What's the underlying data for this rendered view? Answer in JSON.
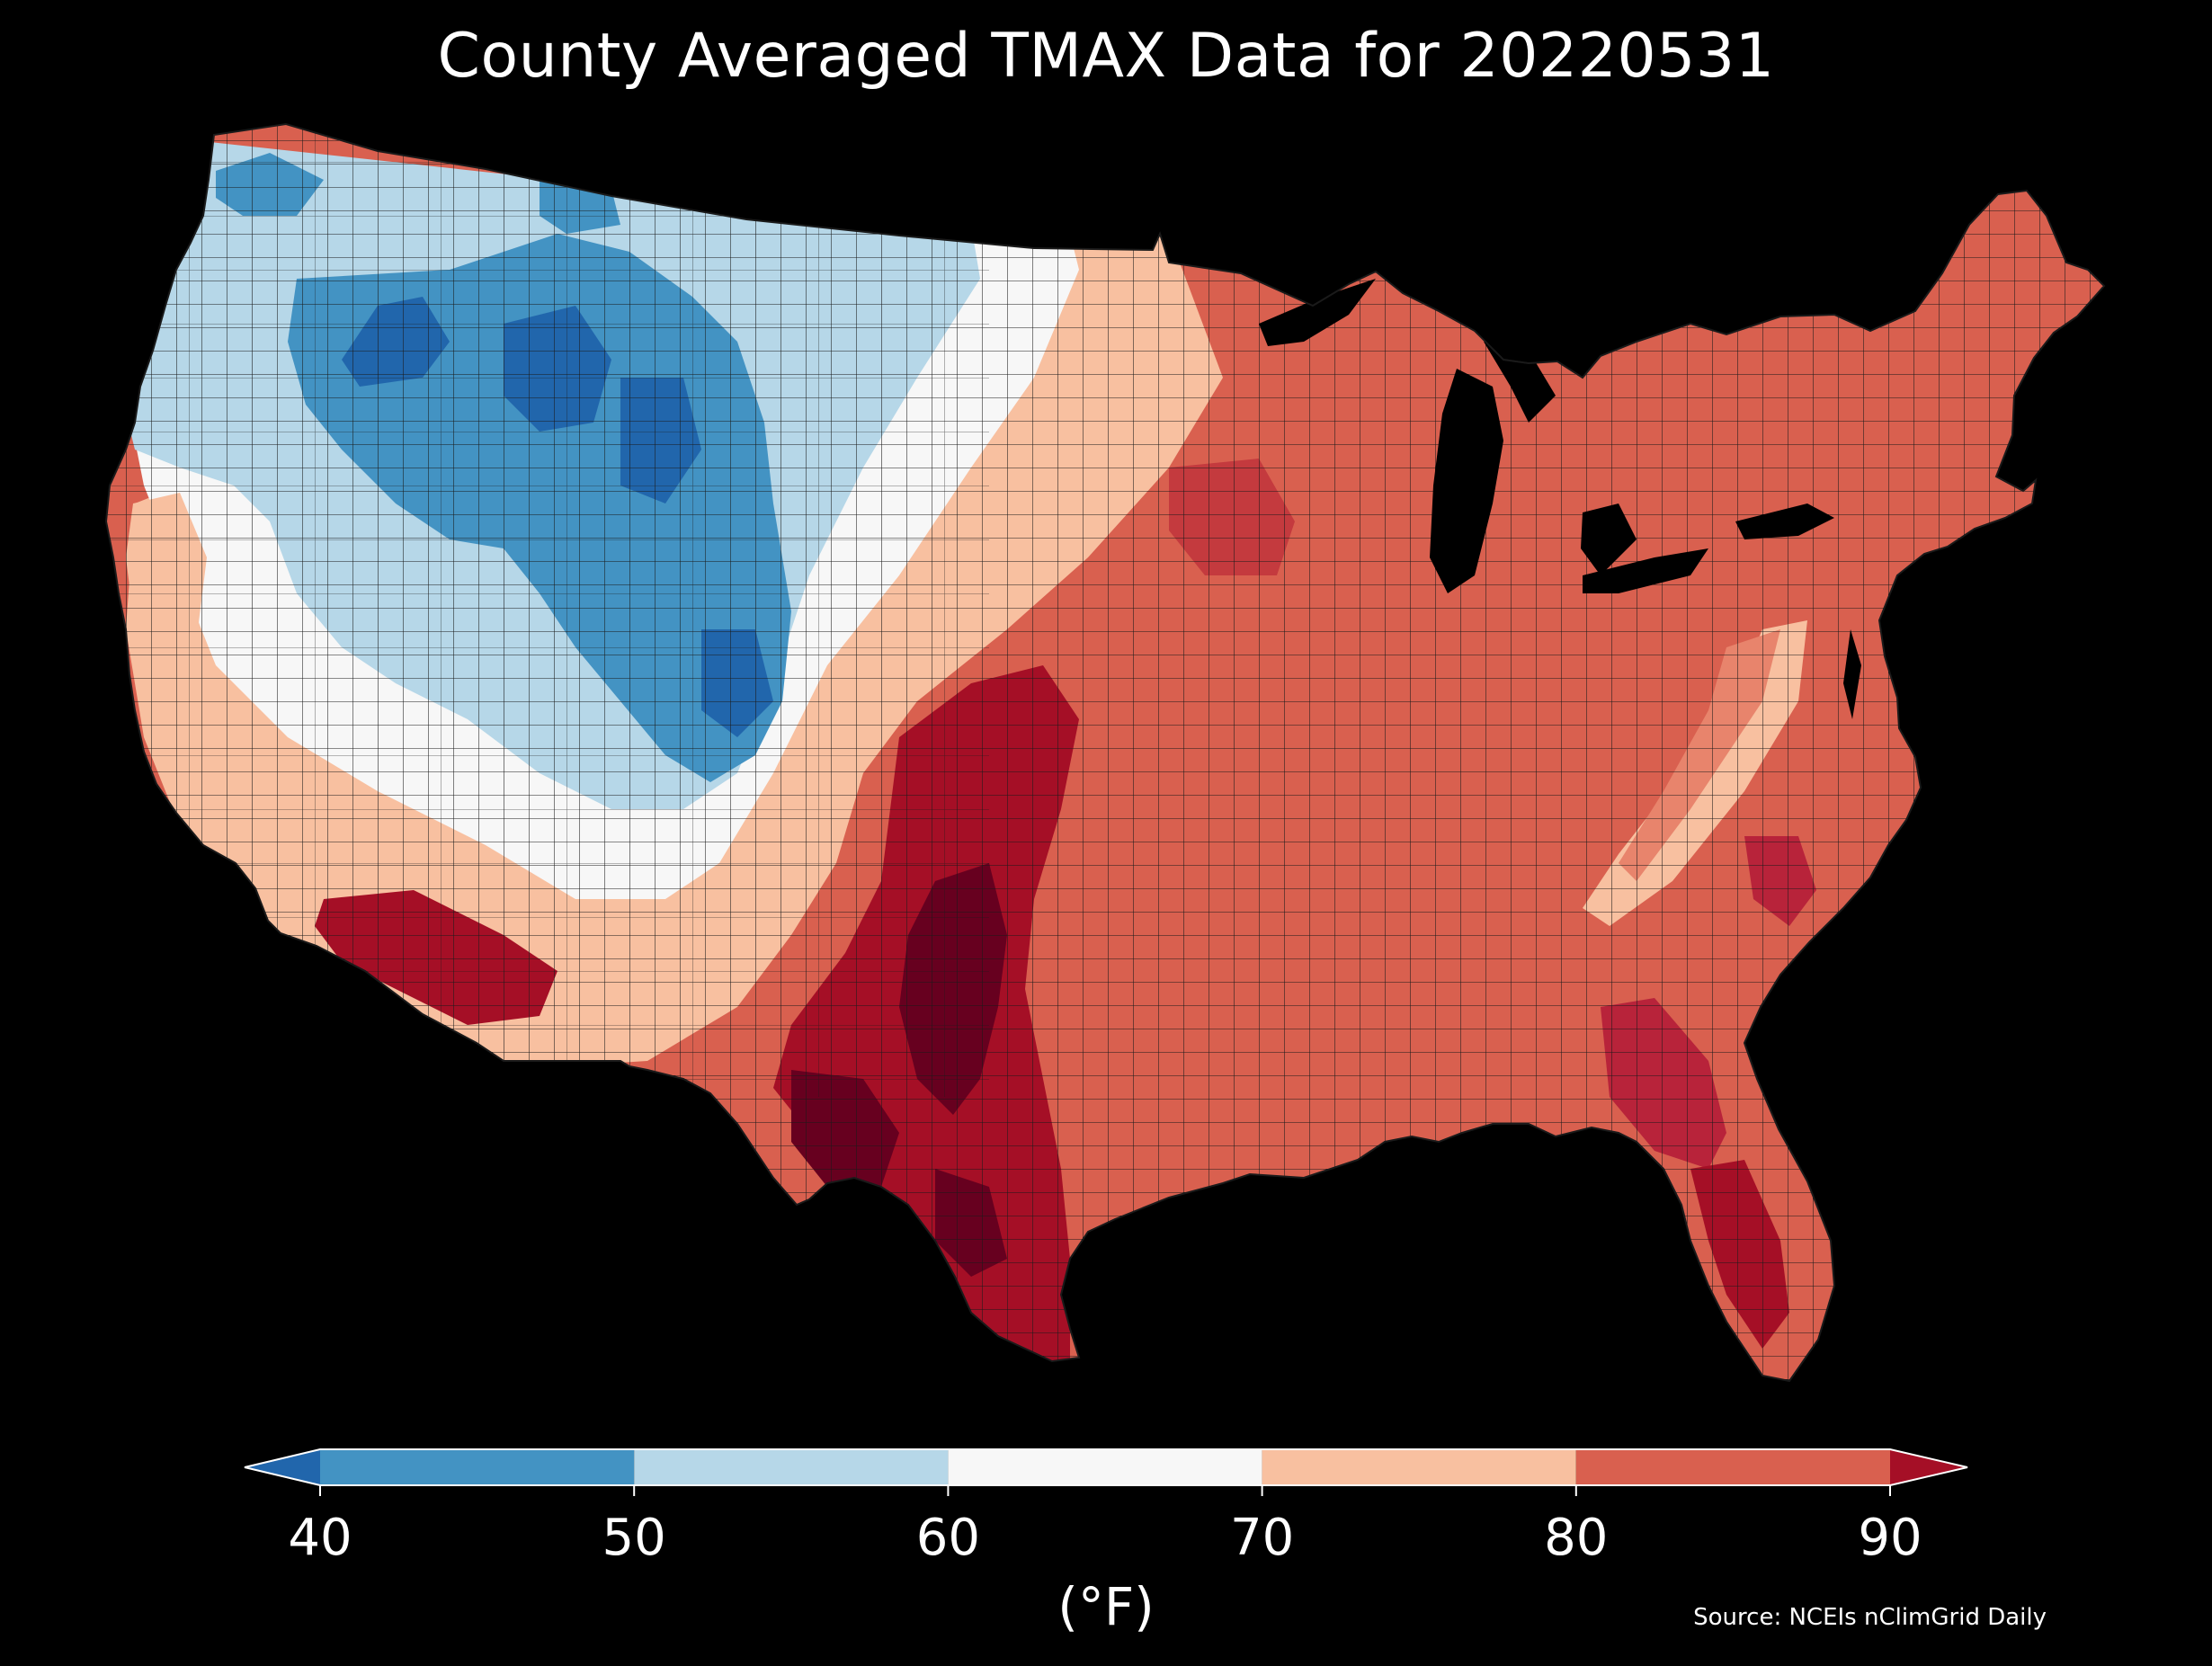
{
  "title": "County Averaged TMAX Data for 20220531",
  "source": "Source: NCEIs nClimGrid Daily",
  "colorbar": {
    "unit": "(°F)",
    "ticks": [
      "40",
      "50",
      "60",
      "70",
      "80",
      "90"
    ],
    "bins": [
      {
        "range": [
          30,
          40
        ],
        "color": "#2166ac",
        "extend": "min"
      },
      {
        "range": [
          40,
          50
        ],
        "color": "#4393c3"
      },
      {
        "range": [
          50,
          60
        ],
        "color": "#b6d7e8"
      },
      {
        "range": [
          60,
          70
        ],
        "color": "#f7f7f7"
      },
      {
        "range": [
          70,
          80
        ],
        "color": "#f8c0a0"
      },
      {
        "range": [
          80,
          90
        ],
        "color": "#d9604f"
      },
      {
        "range": [
          90,
          100
        ],
        "color": "#a50f26",
        "extend": "max"
      }
    ]
  },
  "colors": {
    "background": "#000000",
    "text": "#ffffff",
    "county_border": "#1a1a1a",
    "very_cold": "#2166ac",
    "cold": "#4393c3",
    "cool": "#b6d7e8",
    "mild": "#f7f7f7",
    "warm": "#f8c0a0",
    "hot": "#d9604f",
    "very_hot": "#a50f26",
    "extreme": "#67001f"
  }
}
